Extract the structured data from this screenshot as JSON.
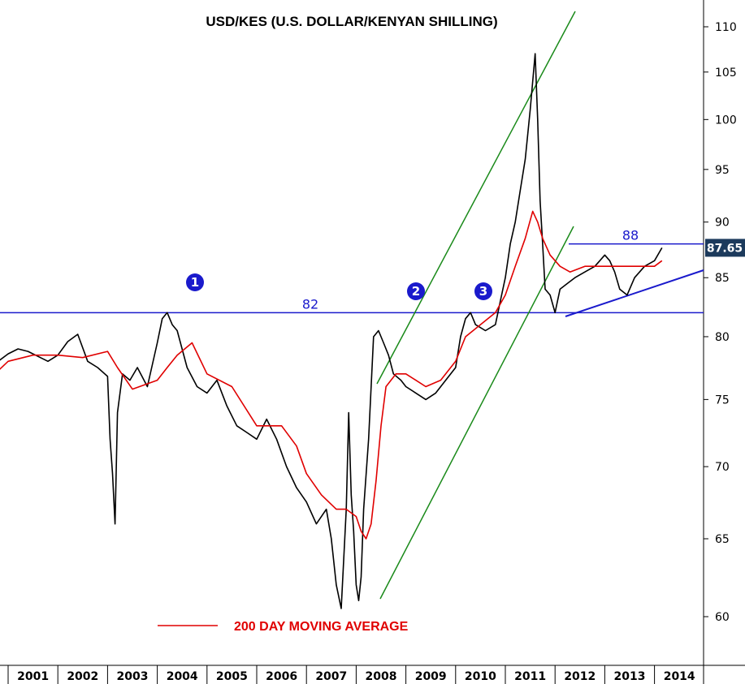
{
  "chart_data": {
    "type": "line",
    "title": "USD/KES (U.S. DOLLAR/KENYAN SHILLING)",
    "y_scale": "log",
    "ylim": [
      57.5,
      112
    ],
    "y_ticks": [
      "60",
      "65",
      "70",
      "75",
      "80",
      "85",
      "90",
      "95",
      "100",
      "105",
      "110"
    ],
    "x_ticks": [
      "2001",
      "2002",
      "2003",
      "2004",
      "2005",
      "2006",
      "2007",
      "2008",
      "2009",
      "2010",
      "2011",
      "2012",
      "2013",
      "2014"
    ],
    "xlim": [
      2000.6,
      2014.6
    ],
    "grid": false,
    "legend_label": "200 DAY MOVING AVERAGE",
    "legend_placement": "bottom-center",
    "last_value_label": "87.65",
    "series": [
      {
        "name": "USD/KES",
        "color": "#000000",
        "x": [
          2000.6,
          2000.8,
          2001.0,
          2001.2,
          2001.4,
          2001.6,
          2001.8,
          2002.0,
          2002.2,
          2002.4,
          2002.6,
          2002.8,
          2003.0,
          2003.05,
          2003.1,
          2003.15,
          2003.2,
          2003.3,
          2003.45,
          2003.6,
          2003.8,
          2004.0,
          2004.1,
          2004.2,
          2004.3,
          2004.4,
          2004.6,
          2004.8,
          2005.0,
          2005.2,
          2005.4,
          2005.6,
          2005.8,
          2006.0,
          2006.2,
          2006.4,
          2006.6,
          2006.8,
          2007.0,
          2007.2,
          2007.4,
          2007.5,
          2007.6,
          2007.7,
          2007.8,
          2007.85,
          2007.9,
          2007.95,
          2008.0,
          2008.05,
          2008.1,
          2008.15,
          2008.25,
          2008.35,
          2008.45,
          2008.55,
          2008.65,
          2008.75,
          2008.9,
          2009.0,
          2009.2,
          2009.4,
          2009.6,
          2009.8,
          2010.0,
          2010.1,
          2010.2,
          2010.3,
          2010.4,
          2010.6,
          2010.8,
          2010.9,
          2011.0,
          2011.1,
          2011.2,
          2011.3,
          2011.4,
          2011.5,
          2011.6,
          2011.65,
          2011.7,
          2011.75,
          2011.8,
          2011.9,
          2012.0,
          2012.1,
          2012.25,
          2012.4,
          2012.6,
          2012.8,
          2012.9,
          2013.0,
          2013.1,
          2013.2,
          2013.3,
          2013.45,
          2013.6,
          2013.8,
          2014.0,
          2014.15
        ],
        "values": [
          79.5,
          78.0,
          78.6,
          79.0,
          78.8,
          78.4,
          78.0,
          78.5,
          79.6,
          80.2,
          78.0,
          77.5,
          76.8,
          72.0,
          69.5,
          66.0,
          74.0,
          77.0,
          76.5,
          77.5,
          76.0,
          79.5,
          81.5,
          82.0,
          81.0,
          80.5,
          77.5,
          76.0,
          75.5,
          76.5,
          74.5,
          73.0,
          72.5,
          72.0,
          73.5,
          72.0,
          70.0,
          68.5,
          67.5,
          66.0,
          67.0,
          65.0,
          62.0,
          60.5,
          67.0,
          74.0,
          68.0,
          65.5,
          62.0,
          61.0,
          62.5,
          67.0,
          72.0,
          80.0,
          80.5,
          79.5,
          78.5,
          77.0,
          76.5,
          76.0,
          75.5,
          75.0,
          75.5,
          76.5,
          77.5,
          80.0,
          81.5,
          82.0,
          81.0,
          80.5,
          81.0,
          83.0,
          85.0,
          88.0,
          90.0,
          93.0,
          96.0,
          101.0,
          107.0,
          100.0,
          92.0,
          88.0,
          84.0,
          83.5,
          82.0,
          84.0,
          84.5,
          85.0,
          85.5,
          86.0,
          86.5,
          87.0,
          86.5,
          85.5,
          84.0,
          83.5,
          85.0,
          86.0,
          86.5,
          87.65
        ]
      },
      {
        "name": "200 DAY MOVING AVERAGE",
        "color": "#e00000",
        "x": [
          2000.6,
          2001.0,
          2001.5,
          2002.0,
          2002.5,
          2003.0,
          2003.2,
          2003.5,
          2004.0,
          2004.2,
          2004.4,
          2004.7,
          2005.0,
          2005.5,
          2006.0,
          2006.5,
          2006.8,
          2007.0,
          2007.3,
          2007.6,
          2007.8,
          2008.0,
          2008.1,
          2008.2,
          2008.3,
          2008.4,
          2008.5,
          2008.6,
          2008.8,
          2009.0,
          2009.2,
          2009.4,
          2009.7,
          2010.0,
          2010.2,
          2010.5,
          2010.8,
          2011.0,
          2011.2,
          2011.4,
          2011.55,
          2011.65,
          2011.75,
          2011.9,
          2012.1,
          2012.3,
          2012.6,
          2012.9,
          2013.1,
          2013.3,
          2013.5,
          2013.8,
          2014.0,
          2014.15
        ],
        "values": [
          76.5,
          78.0,
          78.5,
          78.5,
          78.3,
          78.8,
          77.5,
          75.8,
          76.5,
          77.5,
          78.5,
          79.5,
          77.0,
          76.0,
          73.0,
          73.0,
          71.5,
          69.5,
          68.0,
          67.0,
          67.0,
          66.5,
          65.5,
          65.0,
          66.0,
          69.0,
          73.0,
          76.0,
          77.0,
          77.0,
          76.5,
          76.0,
          76.5,
          78.0,
          80.0,
          81.0,
          82.0,
          83.5,
          86.0,
          88.5,
          91.0,
          90.0,
          88.5,
          87.0,
          86.0,
          85.5,
          86.0,
          86.0,
          86.0,
          86.0,
          86.0,
          86.0,
          86.0,
          86.5
        ]
      }
    ],
    "annotations": [
      {
        "id": "marker-1",
        "text": "1"
      },
      {
        "id": "marker-2",
        "text": "2"
      },
      {
        "id": "marker-3",
        "text": "3"
      },
      {
        "id": "level-82",
        "text": "82",
        "value": 82
      },
      {
        "id": "level-88",
        "text": "88",
        "value": 88
      }
    ]
  }
}
